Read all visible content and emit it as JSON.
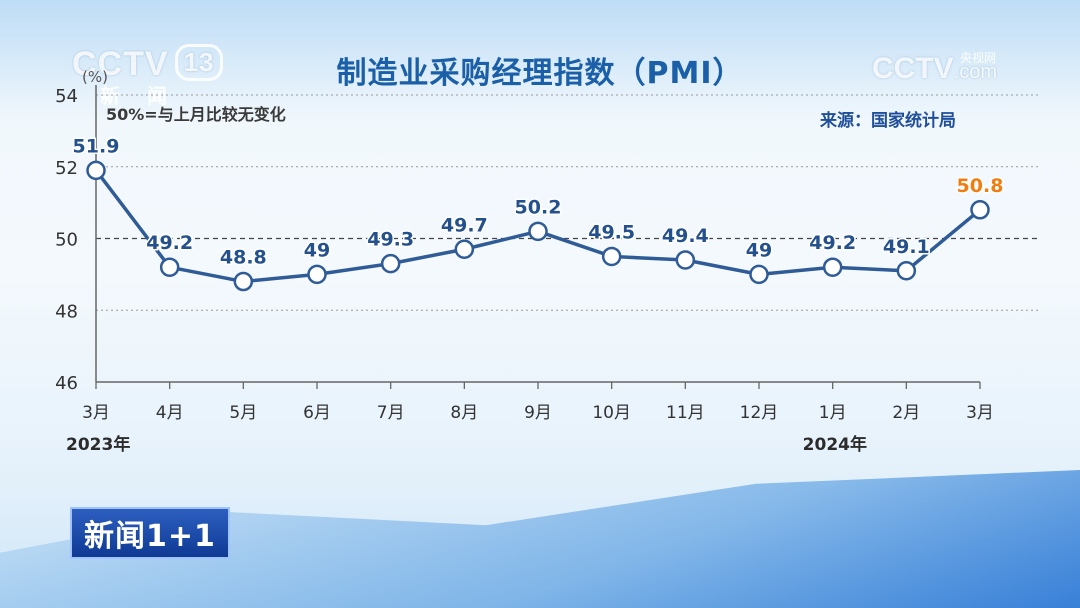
{
  "broadcast": {
    "channel_logo_left": "CCTV",
    "channel_number": "13",
    "channel_name": "新 闻",
    "channel_logo_right": "CCTV",
    "channel_logo_right_suffix": ".com",
    "channel_logo_right_sub": "央视网",
    "program_badge": "新闻1+1"
  },
  "chart_data": {
    "type": "line",
    "title": "制造业采购经理指数（PMI）",
    "source": "来源：国家统计局",
    "ylabel": "(%)",
    "note": "50%=与上月比较无变化",
    "categories": [
      "3月",
      "4月",
      "5月",
      "6月",
      "7月",
      "8月",
      "9月",
      "10月",
      "11月",
      "12月",
      "1月",
      "2月",
      "3月"
    ],
    "year_labels": [
      {
        "label": "2023年",
        "category_index": 0
      },
      {
        "label": "2024年",
        "category_index": 10
      }
    ],
    "series": [
      {
        "values": [
          51.9,
          49.2,
          48.8,
          49,
          49.3,
          49.7,
          50.2,
          49.5,
          49.4,
          49,
          49.2,
          49.1,
          50.8
        ],
        "value_labels": [
          "51.9",
          "49.2",
          "48.8",
          "49",
          "49.3",
          "49.7",
          "50.2",
          "49.5",
          "49.4",
          "49",
          "49.2",
          "49.1",
          "50.8"
        ],
        "color": "#2f5b96",
        "highlight_last_color": "#f07d10"
      }
    ],
    "yticks": [
      46,
      48,
      50,
      52,
      54
    ],
    "ylim": [
      46,
      54
    ],
    "reference_line": 50,
    "grid": true
  }
}
